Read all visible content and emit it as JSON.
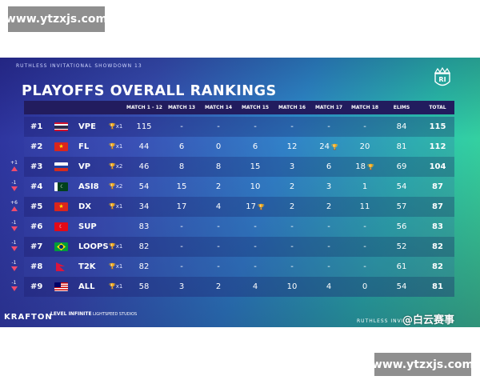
{
  "watermarks": {
    "top": "www.ytzxjs.com",
    "bottom": "www.ytzxjs.com"
  },
  "event_name": "RUTHLESS INVITATIONAL SHOWDOWN 13",
  "title": "PLAYOFFS  OVERALL RANKINGS",
  "logo_text": "RI",
  "colors": {
    "header_bg": "#221c5e",
    "accent_up": "#f04b6c"
  },
  "columns": [
    "MATCH 1 - 12",
    "MATCH 13",
    "MATCH 14",
    "MATCH 15",
    "MATCH 16",
    "MATCH 17",
    "MATCH 18",
    "ELIMS",
    "TOTAL"
  ],
  "rows": [
    {
      "rank": "#1",
      "flag": "thailand",
      "team": "VPE",
      "chickens": "x1",
      "badge": "",
      "m": [
        "115",
        "-",
        "-",
        "-",
        "-",
        "-",
        "-"
      ],
      "m_chicken": [
        false,
        false,
        false,
        false,
        false,
        false,
        false
      ],
      "elims": "84",
      "total": "115"
    },
    {
      "rank": "#2",
      "flag": "vietnam",
      "team": "FL",
      "chickens": "x1",
      "badge": "",
      "m": [
        "44",
        "6",
        "0",
        "6",
        "12",
        "24",
        "20"
      ],
      "m_chicken": [
        false,
        false,
        false,
        false,
        false,
        true,
        false
      ],
      "elims": "81",
      "total": "112"
    },
    {
      "rank": "#3",
      "flag": "russia",
      "team": "VP",
      "chickens": "x2",
      "badge": "+1",
      "m": [
        "46",
        "8",
        "8",
        "15",
        "3",
        "6",
        "18"
      ],
      "m_chicken": [
        false,
        false,
        false,
        false,
        false,
        false,
        true
      ],
      "elims": "69",
      "total": "104"
    },
    {
      "rank": "#4",
      "flag": "pakistan",
      "team": "ASI8",
      "chickens": "x2",
      "badge": "-1",
      "m": [
        "54",
        "15",
        "2",
        "10",
        "2",
        "3",
        "1"
      ],
      "m_chicken": [
        false,
        false,
        false,
        false,
        false,
        false,
        false
      ],
      "elims": "54",
      "total": "87"
    },
    {
      "rank": "#5",
      "flag": "vietnam",
      "team": "DX",
      "chickens": "x1",
      "badge": "+6",
      "m": [
        "34",
        "17",
        "4",
        "17",
        "2",
        "2",
        "11"
      ],
      "m_chicken": [
        false,
        false,
        false,
        true,
        false,
        false,
        false
      ],
      "elims": "57",
      "total": "87"
    },
    {
      "rank": "#6",
      "flag": "turkey",
      "team": "SUP",
      "chickens": "",
      "badge": "-1",
      "m": [
        "83",
        "-",
        "-",
        "-",
        "-",
        "-",
        "-"
      ],
      "m_chicken": [
        false,
        false,
        false,
        false,
        false,
        false,
        false
      ],
      "elims": "56",
      "total": "83"
    },
    {
      "rank": "#7",
      "flag": "brazil",
      "team": "LOOPS",
      "chickens": "x1",
      "badge": "-1",
      "m": [
        "82",
        "-",
        "-",
        "-",
        "-",
        "-",
        "-"
      ],
      "m_chicken": [
        false,
        false,
        false,
        false,
        false,
        false,
        false
      ],
      "elims": "52",
      "total": "82"
    },
    {
      "rank": "#8",
      "flag": "nepal",
      "team": "T2K",
      "chickens": "x1",
      "badge": "-1",
      "m": [
        "82",
        "-",
        "-",
        "-",
        "-",
        "-",
        "-"
      ],
      "m_chicken": [
        false,
        false,
        false,
        false,
        false,
        false,
        false
      ],
      "elims": "61",
      "total": "82"
    },
    {
      "rank": "#9",
      "flag": "malaysia",
      "team": "ALL",
      "chickens": "x1",
      "badge": "-1",
      "m": [
        "58",
        "3",
        "2",
        "4",
        "10",
        "4",
        "0"
      ],
      "m_chicken": [
        false,
        false,
        false,
        false,
        false,
        false,
        false
      ],
      "elims": "54",
      "total": "81"
    }
  ],
  "footer": {
    "krafton": "KRAFTON",
    "level_infinite": "LEVEL INFINITE",
    "lightspeed": "LIGHTSPEED STUDIOS",
    "ruthless": "RUTHLESS INVI",
    "weibo": "@白云赛事"
  }
}
